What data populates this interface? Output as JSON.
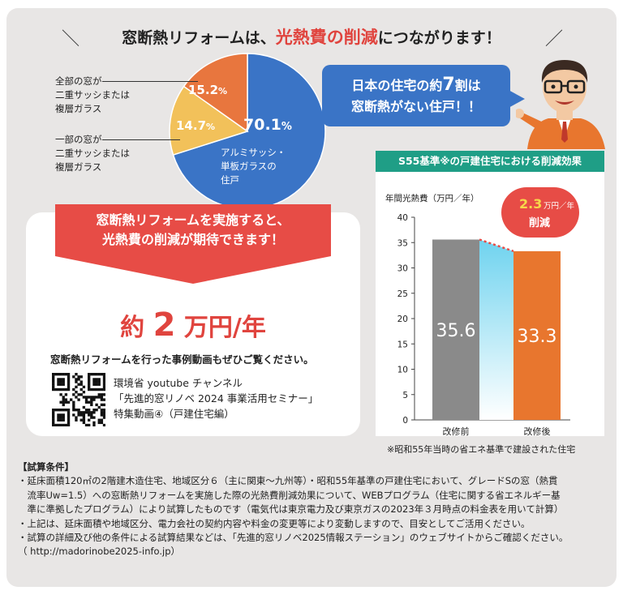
{
  "headline": {
    "pre": "窓断熱リフォームは、",
    "highlight": "光熱費の削減",
    "post": "につながります！"
  },
  "pie": {
    "slices": [
      {
        "label": "アルミサッシ・単板ガラスの住戸",
        "value": 70.1,
        "color": "#3a74c6",
        "text": "70.1",
        "unit": "%"
      },
      {
        "label": "一部の窓が二重サッシまたは複層ガラス",
        "value": 14.7,
        "color": "#f2c15a",
        "text": "14.7",
        "unit": "%"
      },
      {
        "label": "全部の窓が二重サッシまたは複層ガラス",
        "value": 15.2,
        "color": "#e8763e",
        "text": "15.2",
        "unit": "%"
      }
    ],
    "inner_label_lines": [
      "アルミサッシ・",
      "単板ガラスの",
      "住戸"
    ],
    "callout_all_lines": [
      "全部の窓が",
      "二重サッシまたは",
      "複層ガラス"
    ],
    "callout_part_lines": [
      "一部の窓が",
      "二重サッシまたは",
      "複層ガラス"
    ]
  },
  "bubble": {
    "line1_pre": "日本の住宅の約",
    "line1_big": "7",
    "line1_post": "割は",
    "line2": "窓断熱がない住戸！！"
  },
  "ribbon": {
    "line1": "窓断熱リフォームを実施すると、",
    "line2": "光熱費の削減が期待できます！"
  },
  "amount": {
    "pre": "約 ",
    "num": "2",
    "post": " 万円/年"
  },
  "cta": "窓断熱リフォームを行った事例動画もぜひご覧ください。",
  "youtube": {
    "line1": "環境省 youtube チャンネル",
    "line2": "「先進的窓リノベ 2024 事業活用セミナー」",
    "line3": "特集動画④（戸建住宅編）"
  },
  "chart_card": {
    "header": "S55基準※の戸建住宅における削減効果",
    "note": "※昭和55年当時の省エネ基準で建設された住宅"
  },
  "badge": {
    "num": "2.3",
    "unit": "万円／年",
    "label": "削減"
  },
  "chart_data": {
    "type": "bar",
    "ylabel": "年間光熱費（万円／年）",
    "categories": [
      "改修前",
      "改修後"
    ],
    "values": [
      35.6,
      33.3
    ],
    "value_labels": [
      "35.6",
      "33.3"
    ],
    "colors": [
      "#8a8a8a",
      "#e8762e"
    ],
    "ylim": [
      0,
      40
    ],
    "yticks": [
      "0",
      "5",
      "10",
      "15",
      "20",
      "25",
      "30",
      "35",
      "40"
    ],
    "grid": false
  },
  "conditions": {
    "title": "【試算条件】",
    "lines": [
      "・延床面積120㎡の2階建木造住宅、地域区分６（主に関東～九州等）・昭和55年基準の戸建住宅において、グレードSの窓（熱貫",
      "　流率Uw=1.5）への窓断熱リフォームを実施した際の光熱費削減効果について、WEBプログラム（住宅に関する省エネルギー基",
      "　準に準拠したプログラム）により試算したものです（電気代は東京電力及び東京ガスの2023年３月時点の料金表を用いて計算）",
      "・上記は、延床面積や地域区分、電力会社の契約内容や料金の変更等により変動しますので、目安としてご活用ください。",
      "・試算の詳細及び他の条件による試算結果などは、「先進的窓リノベ2025情報ステーション」のウェブサイトからご確認ください。",
      "（ http://madorinobe2025-info.jp）"
    ]
  }
}
